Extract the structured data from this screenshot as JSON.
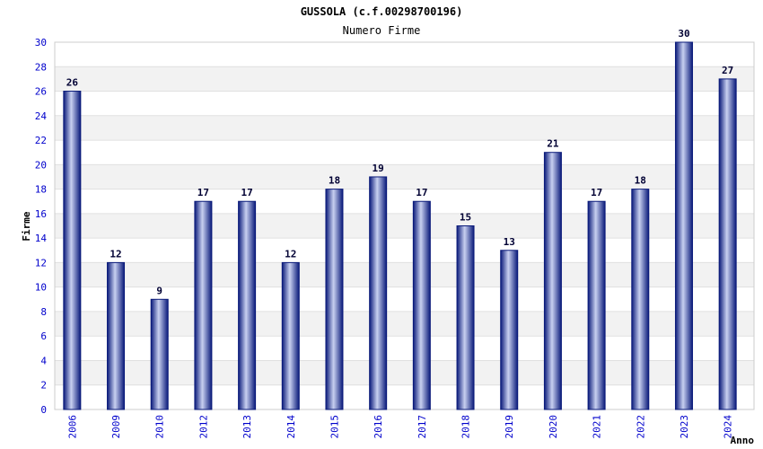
{
  "chart_data": {
    "type": "bar",
    "title": "GUSSOLA (c.f.00298700196)",
    "subtitle": "Numero Firme",
    "xlabel": "Anno",
    "ylabel": "Firme",
    "categories": [
      "2006",
      "2009",
      "2010",
      "2012",
      "2013",
      "2014",
      "2015",
      "2016",
      "2017",
      "2018",
      "2019",
      "2020",
      "2021",
      "2022",
      "2023",
      "2024"
    ],
    "values": [
      26,
      12,
      9,
      17,
      17,
      12,
      18,
      19,
      17,
      15,
      13,
      21,
      17,
      18,
      30,
      27
    ],
    "ylim": [
      0,
      30
    ],
    "yticks": [
      0,
      2,
      4,
      6,
      8,
      10,
      12,
      14,
      16,
      18,
      20,
      22,
      24,
      26,
      28,
      30
    ],
    "grid": true,
    "colors": {
      "bar_dark": "#0a1a7a",
      "bar_light": "#c8d0f0",
      "band": "#f2f2f2",
      "tick_text": "#0000cc",
      "title_text": "#000000",
      "data_label": "#000033"
    }
  }
}
